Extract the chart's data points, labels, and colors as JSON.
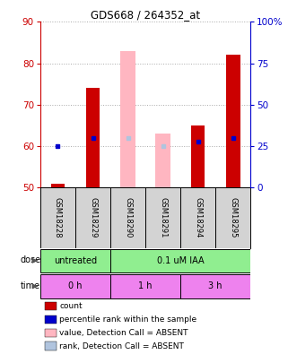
{
  "title": "GDS668 / 264352_at",
  "samples": [
    "GSM18228",
    "GSM18229",
    "GSM18290",
    "GSM18291",
    "GSM18294",
    "GSM18295"
  ],
  "count_values": [
    51,
    74,
    null,
    null,
    65,
    82
  ],
  "count_absent_values": [
    null,
    null,
    83,
    63,
    null,
    null
  ],
  "percentile_values": [
    60,
    62,
    null,
    null,
    61,
    62
  ],
  "percentile_absent_values": [
    null,
    null,
    62,
    60,
    null,
    null
  ],
  "ylim_left": [
    50,
    90
  ],
  "ylim_right": [
    0,
    100
  ],
  "yticks_left": [
    50,
    60,
    70,
    80,
    90
  ],
  "yticks_right": [
    0,
    25,
    50,
    75,
    100
  ],
  "ytick_labels_right": [
    "0",
    "25",
    "50",
    "75",
    "100%"
  ],
  "bar_width": 0.4,
  "count_color": "#cc0000",
  "percentile_color": "#0000cc",
  "absent_count_color": "#ffb6c1",
  "absent_percentile_color": "#b0c4de",
  "grid_color": "#888888",
  "axis_left_color": "#cc0000",
  "axis_right_color": "#0000cc",
  "sample_box_color": "#d3d3d3",
  "dose_box_color": "#90ee90",
  "time_box_color": "#ee82ee",
  "dose_groups": [
    {
      "label": "untreated",
      "start": 0,
      "end": 1
    },
    {
      "label": "0.1 uM IAA",
      "start": 2,
      "end": 5
    }
  ],
  "time_groups": [
    {
      "label": "0 h",
      "start": 0,
      "end": 1
    },
    {
      "label": "1 h",
      "start": 2,
      "end": 3
    },
    {
      "label": "3 h",
      "start": 4,
      "end": 5
    }
  ],
  "legend_items": [
    {
      "color": "#cc0000",
      "label": "count"
    },
    {
      "color": "#0000cc",
      "label": "percentile rank within the sample"
    },
    {
      "color": "#ffb6c1",
      "label": "value, Detection Call = ABSENT"
    },
    {
      "color": "#b0c4de",
      "label": "rank, Detection Call = ABSENT"
    }
  ]
}
